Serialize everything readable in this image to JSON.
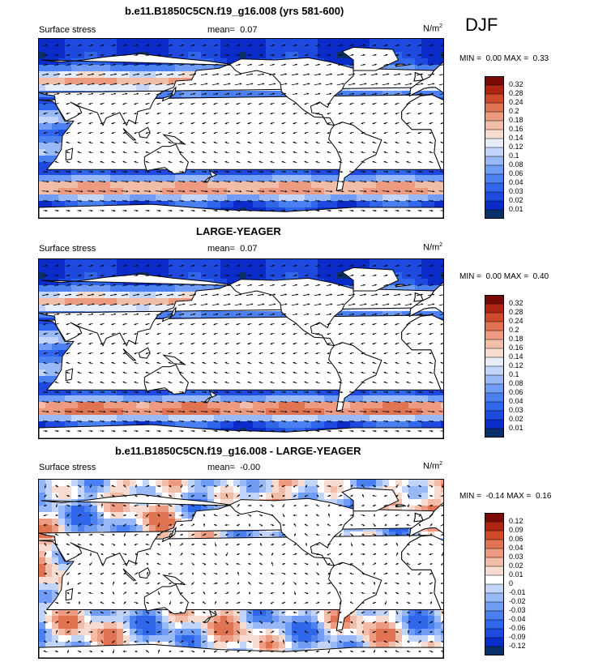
{
  "season": "DJF",
  "panels": [
    {
      "title": "b.e11.B1850C5CN.f19_g16.008 (yrs 581-600)",
      "left_label": "Surface stress",
      "mean_label": "mean=",
      "mean_value": "0.07",
      "units_base": "N/m",
      "units_exp": "2",
      "min_label": "MIN =",
      "min_value": "0.00",
      "max_label": "MAX =",
      "max_value": "0.33",
      "colorbar_labels": [
        "0.32",
        "0.28",
        "0.24",
        "0.2",
        "0.18",
        "0.16",
        "0.14",
        "0.12",
        "0.1",
        "0.08",
        "0.06",
        "0.04",
        "0.03",
        "0.02",
        "0.01"
      ]
    },
    {
      "title": "LARGE-YEAGER",
      "left_label": "Surface stress",
      "mean_label": "mean=",
      "mean_value": "0.07",
      "units_base": "N/m",
      "units_exp": "2",
      "min_label": "MIN =",
      "min_value": "0.00",
      "max_label": "MAX =",
      "max_value": "0.40",
      "colorbar_labels": [
        "0.32",
        "0.28",
        "0.24",
        "0.2",
        "0.18",
        "0.16",
        "0.14",
        "0.12",
        "0.1",
        "0.08",
        "0.06",
        "0.04",
        "0.03",
        "0.02",
        "0.01"
      ]
    },
    {
      "title": "b.e11.B1850C5CN.f19_g16.008 - LARGE-YEAGER",
      "left_label": "Surface stress",
      "mean_label": "mean=",
      "mean_value": "-0.00",
      "units_base": "N/m",
      "units_exp": "2",
      "min_label": "MIN =",
      "min_value": "-0.14",
      "max_label": "MAX =",
      "max_value": "0.16",
      "colorbar_labels": [
        "0.12",
        "0.09",
        "0.06",
        "0.04",
        "0.03",
        "0.02",
        "0.01",
        "0",
        "-0.01",
        "-0.02",
        "-0.03",
        "-0.04",
        "-0.06",
        "-0.09",
        "-0.12"
      ]
    }
  ],
  "chart_data": [
    {
      "type": "heatmap",
      "title": "b.e11.B1850C5CN.f19_g16.008 (yrs 581-600)",
      "variable": "Surface stress",
      "units": "N/m2",
      "season": "DJF",
      "mean": 0.07,
      "min": 0.0,
      "max": 0.33,
      "levels": [
        0.01,
        0.02,
        0.03,
        0.04,
        0.06,
        0.08,
        0.1,
        0.12,
        0.14,
        0.16,
        0.18,
        0.2,
        0.24,
        0.28,
        0.32
      ],
      "colors": [
        "#08306b",
        "#0a2cc8",
        "#1e4ae0",
        "#2f66ea",
        "#4a80f0",
        "#6f9cf4",
        "#98b8f6",
        "#c2d4f7",
        "#e6ecf8",
        "#f6dcd0",
        "#f2bda8",
        "#ec9a80",
        "#e07352",
        "#cf4a2b",
        "#b02414",
        "#7a0a05"
      ]
    },
    {
      "type": "heatmap",
      "title": "LARGE-YEAGER",
      "variable": "Surface stress",
      "units": "N/m2",
      "season": "DJF",
      "mean": 0.07,
      "min": 0.0,
      "max": 0.4,
      "levels": [
        0.01,
        0.02,
        0.03,
        0.04,
        0.06,
        0.08,
        0.1,
        0.12,
        0.14,
        0.16,
        0.18,
        0.2,
        0.24,
        0.28,
        0.32
      ],
      "colors": [
        "#08306b",
        "#0a2cc8",
        "#1e4ae0",
        "#2f66ea",
        "#4a80f0",
        "#6f9cf4",
        "#98b8f6",
        "#c2d4f7",
        "#e6ecf8",
        "#f6dcd0",
        "#f2bda8",
        "#ec9a80",
        "#e07352",
        "#cf4a2b",
        "#b02414",
        "#7a0a05"
      ]
    },
    {
      "type": "heatmap",
      "title": "b.e11.B1850C5CN.f19_g16.008 - LARGE-YEAGER",
      "variable": "Surface stress",
      "units": "N/m2",
      "season": "DJF",
      "mean": -0.0,
      "min": -0.14,
      "max": 0.16,
      "levels": [
        -0.12,
        -0.09,
        -0.06,
        -0.04,
        -0.03,
        -0.02,
        -0.01,
        0,
        0.01,
        0.02,
        0.03,
        0.04,
        0.06,
        0.09,
        0.12
      ],
      "colors": [
        "#08306b",
        "#0a2cc8",
        "#1e4ae0",
        "#2f66ea",
        "#4a80f0",
        "#6f9cf4",
        "#98b8f6",
        "#c2d4f7",
        "#ffffff",
        "#f6dcd0",
        "#f2bda8",
        "#ec9a80",
        "#e07352",
        "#cf4a2b",
        "#b02414",
        "#7a0a05"
      ]
    }
  ]
}
